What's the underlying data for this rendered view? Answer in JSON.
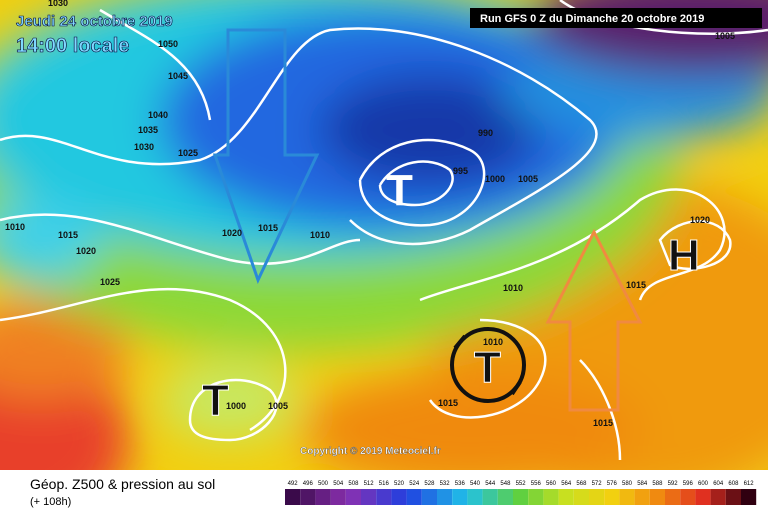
{
  "header": {
    "valid_date": "Jeudi 24 octobre 2019",
    "local_time": "14:00 locale",
    "run": "Run GFS 0 Z du Dimanche 20 octobre 2019"
  },
  "copyright": "Copyright © 2019 Meteociel.fr",
  "isobar_labels": [
    "1030",
    "1050",
    "1045",
    "1040",
    "1035",
    "1030",
    "1025",
    "1020",
    "1015",
    "1010",
    "1010",
    "1015",
    "1020",
    "1025",
    "990",
    "995",
    "1000",
    "1005",
    "1020",
    "1015",
    "1010",
    "1010",
    "1015",
    "1015",
    "1000",
    "1005",
    "1005"
  ],
  "systems": [
    "T",
    "T",
    "T",
    "H"
  ],
  "legend": {
    "title": "Géop. Z500 & pression au sol",
    "lead": "(+ 108h)",
    "scale": [
      492,
      496,
      500,
      504,
      508,
      512,
      516,
      520,
      524,
      528,
      532,
      536,
      540,
      544,
      548,
      552,
      556,
      560,
      564,
      568,
      572,
      576,
      580,
      584,
      588,
      592,
      596,
      600,
      604,
      608,
      612
    ]
  }
}
